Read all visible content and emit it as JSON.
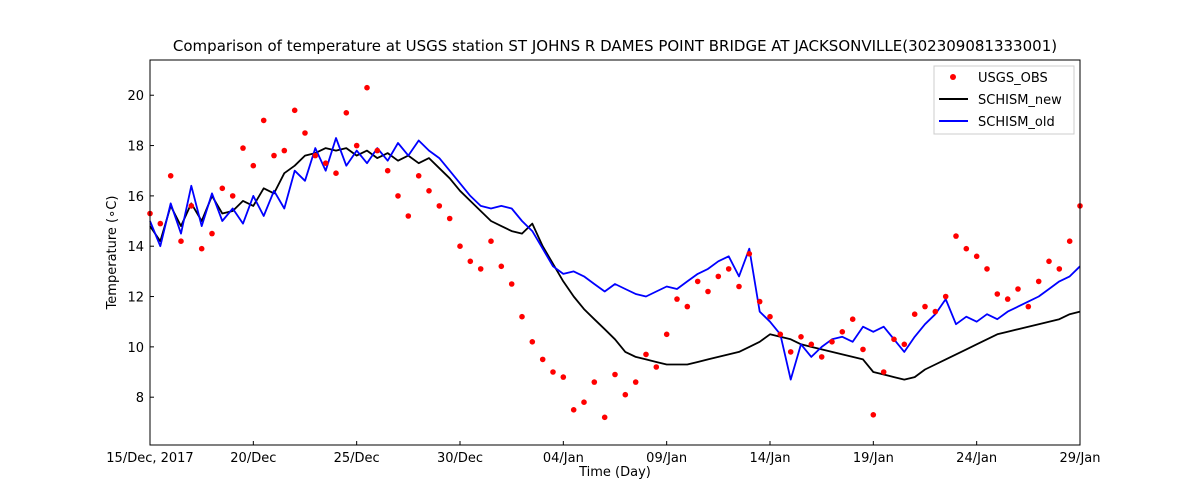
{
  "chart_data": {
    "type": "line",
    "title": "Comparison of temperature at USGS station ST JOHNS R DAMES POINT BRIDGE AT JACKSONVILLE(302309081333001)",
    "xlabel": "Time (Day)",
    "ylabel": "Temperature (∘C)",
    "xlim": [
      "2017-12-15",
      "2018-01-29"
    ],
    "ylim": [
      6.1,
      21.4
    ],
    "x_ticks": [
      {
        "date": "2017-12-15",
        "label": "15/Dec, 2017"
      },
      {
        "date": "2017-12-20",
        "label": "20/Dec"
      },
      {
        "date": "2017-12-25",
        "label": "25/Dec"
      },
      {
        "date": "2017-12-30",
        "label": "30/Dec"
      },
      {
        "date": "2018-01-04",
        "label": "04/Jan"
      },
      {
        "date": "2018-01-09",
        "label": "09/Jan"
      },
      {
        "date": "2018-01-14",
        "label": "14/Jan"
      },
      {
        "date": "2018-01-19",
        "label": "19/Jan"
      },
      {
        "date": "2018-01-24",
        "label": "24/Jan"
      },
      {
        "date": "2018-01-29",
        "label": "29/Jan"
      }
    ],
    "y_ticks": [
      8,
      10,
      12,
      14,
      16,
      18,
      20
    ],
    "grid": false,
    "legend": "top-right",
    "series": [
      {
        "name": "USGS_OBS",
        "style": "markers",
        "color": "#ff0000",
        "x": [
          "2017-12-15T00:00",
          "2017-12-15T12:00",
          "2017-12-16T00:00",
          "2017-12-16T12:00",
          "2017-12-17T00:00",
          "2017-12-17T12:00",
          "2017-12-18T00:00",
          "2017-12-18T12:00",
          "2017-12-19T00:00",
          "2017-12-19T12:00",
          "2017-12-20T00:00",
          "2017-12-20T12:00",
          "2017-12-21T00:00",
          "2017-12-21T12:00",
          "2017-12-22T00:00",
          "2017-12-22T12:00",
          "2017-12-23T00:00",
          "2017-12-23T12:00",
          "2017-12-24T00:00",
          "2017-12-24T12:00",
          "2017-12-25T00:00",
          "2017-12-25T12:00",
          "2017-12-26T00:00",
          "2017-12-26T12:00",
          "2017-12-27T00:00",
          "2017-12-27T12:00",
          "2017-12-28T00:00",
          "2017-12-28T12:00",
          "2017-12-29T00:00",
          "2017-12-29T12:00",
          "2017-12-30T00:00",
          "2017-12-30T12:00",
          "2017-12-31T00:00",
          "2017-12-31T12:00",
          "2018-01-01T00:00",
          "2018-01-01T12:00",
          "2018-01-02T00:00",
          "2018-01-02T12:00",
          "2018-01-03T00:00",
          "2018-01-03T12:00",
          "2018-01-04T00:00",
          "2018-01-04T12:00",
          "2018-01-05T00:00",
          "2018-01-05T12:00",
          "2018-01-06T00:00",
          "2018-01-06T12:00",
          "2018-01-07T00:00",
          "2018-01-07T12:00",
          "2018-01-08T00:00",
          "2018-01-08T12:00",
          "2018-01-09T00:00",
          "2018-01-09T12:00",
          "2018-01-10T00:00",
          "2018-01-10T12:00",
          "2018-01-11T00:00",
          "2018-01-11T12:00",
          "2018-01-12T00:00",
          "2018-01-12T12:00",
          "2018-01-13T00:00",
          "2018-01-13T12:00",
          "2018-01-14T00:00",
          "2018-01-14T12:00",
          "2018-01-15T00:00",
          "2018-01-15T12:00",
          "2018-01-16T00:00",
          "2018-01-16T12:00",
          "2018-01-17T00:00",
          "2018-01-17T12:00",
          "2018-01-18T00:00",
          "2018-01-18T12:00",
          "2018-01-19T00:00",
          "2018-01-19T12:00",
          "2018-01-20T00:00",
          "2018-01-20T12:00",
          "2018-01-21T00:00",
          "2018-01-21T12:00",
          "2018-01-22T00:00",
          "2018-01-22T12:00",
          "2018-01-23T00:00",
          "2018-01-23T12:00",
          "2018-01-24T00:00",
          "2018-01-24T12:00",
          "2018-01-25T00:00",
          "2018-01-25T12:00",
          "2018-01-26T00:00",
          "2018-01-26T12:00",
          "2018-01-27T00:00",
          "2018-01-27T12:00",
          "2018-01-28T00:00",
          "2018-01-28T12:00",
          "2018-01-29T00:00"
        ],
        "y": [
          15.3,
          14.9,
          16.8,
          14.2,
          15.6,
          13.9,
          14.5,
          16.3,
          16.0,
          17.9,
          17.2,
          19.0,
          17.6,
          17.8,
          19.4,
          18.5,
          17.6,
          17.3,
          16.9,
          19.3,
          18.0,
          20.3,
          17.8,
          17.0,
          16.0,
          15.2,
          16.8,
          16.2,
          15.6,
          15.1,
          14.0,
          13.4,
          13.1,
          14.2,
          13.2,
          12.5,
          11.2,
          10.2,
          9.5,
          9.0,
          8.8,
          7.5,
          7.8,
          8.6,
          7.2,
          8.9,
          8.1,
          8.6,
          9.7,
          9.2,
          10.5,
          11.9,
          11.6,
          12.6,
          12.2,
          12.8,
          13.1,
          12.4,
          13.7,
          11.8,
          11.2,
          10.5,
          9.8,
          10.4,
          10.1,
          9.6,
          10.2,
          10.6,
          11.1,
          9.9,
          7.3,
          9.0,
          10.3,
          10.1,
          11.3,
          11.6,
          11.4,
          12.0,
          14.4,
          13.9,
          13.6,
          13.1,
          12.1,
          11.9,
          12.3,
          11.6,
          12.6,
          13.4,
          13.1,
          14.2,
          15.6
        ]
      },
      {
        "name": "SCHISM_new",
        "style": "line",
        "color": "#000000",
        "x": [
          "2017-12-15T00:00",
          "2017-12-15T12:00",
          "2017-12-16T00:00",
          "2017-12-16T12:00",
          "2017-12-17T00:00",
          "2017-12-17T12:00",
          "2017-12-18T00:00",
          "2017-12-18T12:00",
          "2017-12-19T00:00",
          "2017-12-19T12:00",
          "2017-12-20T00:00",
          "2017-12-20T12:00",
          "2017-12-21T00:00",
          "2017-12-21T12:00",
          "2017-12-22T00:00",
          "2017-12-22T12:00",
          "2017-12-23T00:00",
          "2017-12-23T12:00",
          "2017-12-24T00:00",
          "2017-12-24T12:00",
          "2017-12-25T00:00",
          "2017-12-25T12:00",
          "2017-12-26T00:00",
          "2017-12-26T12:00",
          "2017-12-27T00:00",
          "2017-12-27T12:00",
          "2017-12-28T00:00",
          "2017-12-28T12:00",
          "2017-12-29T00:00",
          "2017-12-29T12:00",
          "2017-12-30T00:00",
          "2017-12-30T12:00",
          "2017-12-31T00:00",
          "2017-12-31T12:00",
          "2018-01-01T00:00",
          "2018-01-01T12:00",
          "2018-01-02T00:00",
          "2018-01-02T12:00",
          "2018-01-03T00:00",
          "2018-01-03T12:00",
          "2018-01-04T00:00",
          "2018-01-04T12:00",
          "2018-01-05T00:00",
          "2018-01-05T12:00",
          "2018-01-06T00:00",
          "2018-01-06T12:00",
          "2018-01-07T00:00",
          "2018-01-07T12:00",
          "2018-01-08T00:00",
          "2018-01-08T12:00",
          "2018-01-09T00:00",
          "2018-01-09T12:00",
          "2018-01-10T00:00",
          "2018-01-10T12:00",
          "2018-01-11T00:00",
          "2018-01-11T12:00",
          "2018-01-12T00:00",
          "2018-01-12T12:00",
          "2018-01-13T00:00",
          "2018-01-13T12:00",
          "2018-01-14T00:00",
          "2018-01-14T12:00",
          "2018-01-15T00:00",
          "2018-01-15T12:00",
          "2018-01-16T00:00",
          "2018-01-16T12:00",
          "2018-01-17T00:00",
          "2018-01-17T12:00",
          "2018-01-18T00:00",
          "2018-01-18T12:00",
          "2018-01-19T00:00",
          "2018-01-19T12:00",
          "2018-01-20T00:00",
          "2018-01-20T12:00",
          "2018-01-21T00:00",
          "2018-01-21T12:00",
          "2018-01-22T00:00",
          "2018-01-22T12:00",
          "2018-01-23T00:00",
          "2018-01-23T12:00",
          "2018-01-24T00:00",
          "2018-01-24T12:00",
          "2018-01-25T00:00",
          "2018-01-25T12:00",
          "2018-01-26T00:00",
          "2018-01-26T12:00",
          "2018-01-27T00:00",
          "2018-01-27T12:00",
          "2018-01-28T00:00",
          "2018-01-28T12:00",
          "2018-01-29T00:00"
        ],
        "y": [
          14.8,
          14.2,
          15.6,
          14.8,
          15.7,
          15.0,
          16.0,
          15.3,
          15.4,
          15.8,
          15.6,
          16.3,
          16.1,
          16.9,
          17.2,
          17.6,
          17.7,
          17.9,
          17.8,
          17.9,
          17.6,
          17.8,
          17.5,
          17.7,
          17.4,
          17.6,
          17.3,
          17.5,
          17.1,
          16.7,
          16.2,
          15.8,
          15.4,
          15.0,
          14.8,
          14.6,
          14.5,
          14.9,
          14.0,
          13.3,
          12.6,
          12.0,
          11.5,
          11.1,
          10.7,
          10.3,
          9.8,
          9.6,
          9.5,
          9.4,
          9.3,
          9.3,
          9.3,
          9.4,
          9.5,
          9.6,
          9.7,
          9.8,
          10.0,
          10.2,
          10.5,
          10.4,
          10.3,
          10.1,
          10.0,
          9.9,
          9.8,
          9.7,
          9.6,
          9.5,
          9.0,
          8.9,
          8.8,
          8.7,
          8.8,
          9.1,
          9.3,
          9.5,
          9.7,
          9.9,
          10.1,
          10.3,
          10.5,
          10.6,
          10.7,
          10.8,
          10.9,
          11.0,
          11.1,
          11.3,
          11.4
        ]
      },
      {
        "name": "SCHISM_old",
        "style": "line",
        "color": "#0000ff",
        "x": [
          "2017-12-15T00:00",
          "2017-12-15T12:00",
          "2017-12-16T00:00",
          "2017-12-16T12:00",
          "2017-12-17T00:00",
          "2017-12-17T12:00",
          "2017-12-18T00:00",
          "2017-12-18T12:00",
          "2017-12-19T00:00",
          "2017-12-19T12:00",
          "2017-12-20T00:00",
          "2017-12-20T12:00",
          "2017-12-21T00:00",
          "2017-12-21T12:00",
          "2017-12-22T00:00",
          "2017-12-22T12:00",
          "2017-12-23T00:00",
          "2017-12-23T12:00",
          "2017-12-24T00:00",
          "2017-12-24T12:00",
          "2017-12-25T00:00",
          "2017-12-25T12:00",
          "2017-12-26T00:00",
          "2017-12-26T12:00",
          "2017-12-27T00:00",
          "2017-12-27T12:00",
          "2017-12-28T00:00",
          "2017-12-28T12:00",
          "2017-12-29T00:00",
          "2017-12-29T12:00",
          "2017-12-30T00:00",
          "2017-12-30T12:00",
          "2017-12-31T00:00",
          "2017-12-31T12:00",
          "2018-01-01T00:00",
          "2018-01-01T12:00",
          "2018-01-02T00:00",
          "2018-01-02T12:00",
          "2018-01-03T00:00",
          "2018-01-03T12:00",
          "2018-01-04T00:00",
          "2018-01-04T12:00",
          "2018-01-05T00:00",
          "2018-01-05T12:00",
          "2018-01-06T00:00",
          "2018-01-06T12:00",
          "2018-01-07T00:00",
          "2018-01-07T12:00",
          "2018-01-08T00:00",
          "2018-01-08T12:00",
          "2018-01-09T00:00",
          "2018-01-09T12:00",
          "2018-01-10T00:00",
          "2018-01-10T12:00",
          "2018-01-11T00:00",
          "2018-01-11T12:00",
          "2018-01-12T00:00",
          "2018-01-12T12:00",
          "2018-01-13T00:00",
          "2018-01-13T12:00",
          "2018-01-14T00:00",
          "2018-01-14T12:00",
          "2018-01-15T00:00",
          "2018-01-15T12:00",
          "2018-01-16T00:00",
          "2018-01-16T12:00",
          "2018-01-17T00:00",
          "2018-01-17T12:00",
          "2018-01-18T00:00",
          "2018-01-18T12:00",
          "2018-01-19T00:00",
          "2018-01-19T12:00",
          "2018-01-20T00:00",
          "2018-01-20T12:00",
          "2018-01-21T00:00",
          "2018-01-21T12:00",
          "2018-01-22T00:00",
          "2018-01-22T12:00",
          "2018-01-23T00:00",
          "2018-01-23T12:00",
          "2018-01-24T00:00",
          "2018-01-24T12:00",
          "2018-01-25T00:00",
          "2018-01-25T12:00",
          "2018-01-26T00:00",
          "2018-01-26T12:00",
          "2018-01-27T00:00",
          "2018-01-27T12:00",
          "2018-01-28T00:00",
          "2018-01-28T12:00",
          "2018-01-29T00:00"
        ],
        "y": [
          15.0,
          14.0,
          15.7,
          14.5,
          16.4,
          14.8,
          16.1,
          15.0,
          15.5,
          14.9,
          16.0,
          15.2,
          16.2,
          15.5,
          17.0,
          16.6,
          17.9,
          17.0,
          18.3,
          17.2,
          17.8,
          17.3,
          17.9,
          17.4,
          18.1,
          17.6,
          18.2,
          17.8,
          17.5,
          17.0,
          16.5,
          16.0,
          15.6,
          15.5,
          15.6,
          15.5,
          15.0,
          14.6,
          13.9,
          13.2,
          12.9,
          13.0,
          12.8,
          12.5,
          12.2,
          12.5,
          12.3,
          12.1,
          12.0,
          12.2,
          12.4,
          12.3,
          12.6,
          12.9,
          13.1,
          13.4,
          13.6,
          12.8,
          13.9,
          11.4,
          11.0,
          10.5,
          8.7,
          10.1,
          9.6,
          10.0,
          10.3,
          10.4,
          10.2,
          10.8,
          10.6,
          10.8,
          10.3,
          9.8,
          10.4,
          10.9,
          11.3,
          11.9,
          10.9,
          11.2,
          11.0,
          11.3,
          11.1,
          11.4,
          11.6,
          11.8,
          12.0,
          12.3,
          12.6,
          12.8,
          13.2
        ]
      }
    ]
  }
}
